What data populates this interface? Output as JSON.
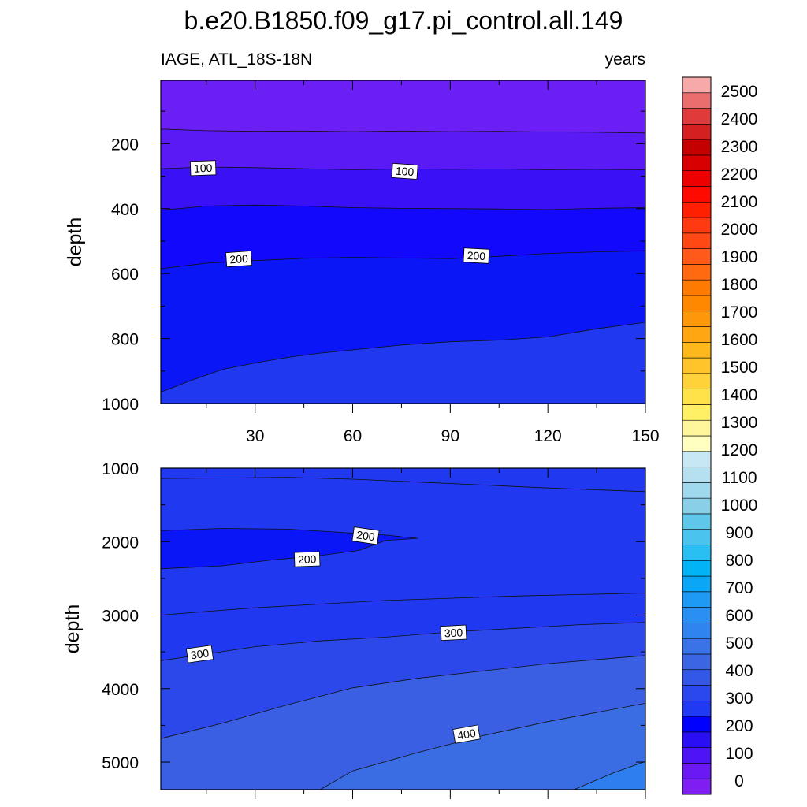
{
  "chart_data": [
    {
      "type": "contour",
      "title": "b.e20.B1850.f09_g17.pi_control.all.149",
      "left_label": "IAGE, ATL_18S-18N",
      "right_label": "years",
      "xlabel": "",
      "ylabel": "depth",
      "xlim": [
        1,
        150
      ],
      "ylim": [
        1000,
        5
      ],
      "x_ticks": [
        30,
        60,
        90,
        120,
        150
      ],
      "y_ticks": [
        200,
        400,
        600,
        800,
        1000
      ],
      "contour_interval": 50,
      "contour_boundaries": [
        {
          "level": 50,
          "points": [
            [
              1,
              155
            ],
            [
              15,
              160
            ],
            [
              30,
              162
            ],
            [
              45,
              161
            ],
            [
              60,
              163
            ],
            [
              75,
              161
            ],
            [
              90,
              163
            ],
            [
              105,
              162
            ],
            [
              120,
              164
            ],
            [
              135,
              165
            ],
            [
              150,
              167
            ]
          ]
        },
        {
          "level": 100,
          "points": [
            [
              1,
              277
            ],
            [
              15,
              272
            ],
            [
              30,
              274
            ],
            [
              45,
              277
            ],
            [
              60,
              280
            ],
            [
              75,
              278
            ],
            [
              90,
              279
            ],
            [
              105,
              278
            ],
            [
              120,
              280
            ],
            [
              135,
              279
            ],
            [
              150,
              280
            ]
          ]
        },
        {
          "level": 150,
          "points": [
            [
              1,
              405
            ],
            [
              15,
              392
            ],
            [
              30,
              389
            ],
            [
              45,
              392
            ],
            [
              60,
              397
            ],
            [
              75,
              399
            ],
            [
              90,
              400
            ],
            [
              105,
              401
            ],
            [
              120,
              403
            ],
            [
              135,
              399
            ],
            [
              150,
              397
            ]
          ]
        },
        {
          "level": 200,
          "points": [
            [
              1,
              585
            ],
            [
              15,
              568
            ],
            [
              30,
              560
            ],
            [
              45,
              553
            ],
            [
              60,
              550
            ],
            [
              75,
              552
            ],
            [
              90,
              554
            ],
            [
              105,
              547
            ],
            [
              120,
              538
            ],
            [
              135,
              533
            ],
            [
              150,
              530
            ]
          ]
        },
        {
          "level": 250,
          "points": [
            [
              1,
              965
            ],
            [
              10,
              930
            ],
            [
              20,
              895
            ],
            [
              30,
              875
            ],
            [
              40,
              858
            ],
            [
              50,
              845
            ],
            [
              60,
              835
            ],
            [
              75,
              820
            ],
            [
              90,
              810
            ],
            [
              105,
              805
            ],
            [
              120,
              795
            ],
            [
              135,
              770
            ],
            [
              150,
              750
            ]
          ]
        }
      ],
      "contour_labels": [
        {
          "text": "100",
          "x": 14,
          "y": 275,
          "angle": -2
        },
        {
          "text": "100",
          "x": 76,
          "y": 285,
          "angle": 4
        },
        {
          "text": "200",
          "x": 25,
          "y": 555,
          "angle": -4
        },
        {
          "text": "200",
          "x": 98,
          "y": 545,
          "angle": 3
        }
      ]
    },
    {
      "type": "contour",
      "xlabel": "",
      "ylabel": "depth",
      "xlim": [
        1,
        150
      ],
      "ylim": [
        5375,
        1000
      ],
      "y_ticks": [
        1000,
        2000,
        3000,
        4000,
        5000
      ],
      "contour_interval": 50,
      "contour_boundaries": [
        {
          "level": 250,
          "points": [
            [
              1,
              1140
            ],
            [
              20,
              1135
            ],
            [
              40,
              1125
            ],
            [
              60,
              1150
            ],
            [
              80,
              1190
            ],
            [
              100,
              1230
            ],
            [
              120,
              1270
            ],
            [
              150,
              1320
            ]
          ]
        },
        {
          "level": 200,
          "closed": true,
          "points": [
            [
              1,
              1850
            ],
            [
              20,
              1820
            ],
            [
              40,
              1830
            ],
            [
              55,
              1870
            ],
            [
              70,
              1910
            ],
            [
              80,
              1955
            ],
            [
              70,
              1985
            ],
            [
              62,
              2120
            ],
            [
              50,
              2190
            ],
            [
              35,
              2250
            ],
            [
              20,
              2330
            ],
            [
              1,
              2370
            ]
          ]
        },
        {
          "level": 250,
          "points": [
            [
              1,
              3000
            ],
            [
              15,
              2950
            ],
            [
              30,
              2900
            ],
            [
              50,
              2850
            ],
            [
              70,
              2800
            ],
            [
              90,
              2770
            ],
            [
              110,
              2740
            ],
            [
              130,
              2720
            ],
            [
              150,
              2700
            ]
          ]
        },
        {
          "level": 300,
          "points": [
            [
              1,
              3620
            ],
            [
              15,
              3530
            ],
            [
              30,
              3430
            ],
            [
              50,
              3350
            ],
            [
              70,
              3300
            ],
            [
              90,
              3230
            ],
            [
              110,
              3180
            ],
            [
              130,
              3130
            ],
            [
              150,
              3100
            ]
          ]
        },
        {
          "level": 350,
          "points": [
            [
              1,
              4680
            ],
            [
              20,
              4470
            ],
            [
              40,
              4220
            ],
            [
              60,
              3990
            ],
            [
              80,
              3860
            ],
            [
              100,
              3760
            ],
            [
              120,
              3660
            ],
            [
              150,
              3550
            ]
          ]
        },
        {
          "level": 400,
          "points": [
            [
              50,
              5375
            ],
            [
              60,
              5120
            ],
            [
              80,
              4870
            ],
            [
              100,
              4640
            ],
            [
              120,
              4450
            ],
            [
              150,
              4200
            ]
          ]
        },
        {
          "level": 450,
          "points": [
            [
              128,
              5375
            ],
            [
              140,
              5150
            ],
            [
              150,
              4990
            ]
          ]
        }
      ],
      "contour_labels": [
        {
          "text": "200",
          "x": 64,
          "y": 1920,
          "angle": 8
        },
        {
          "text": "200",
          "x": 46,
          "y": 2240,
          "angle": -2
        },
        {
          "text": "300",
          "x": 13,
          "y": 3530,
          "angle": -8
        },
        {
          "text": "300",
          "x": 91,
          "y": 3240,
          "angle": -3
        },
        {
          "text": "400",
          "x": 95,
          "y": 4620,
          "angle": -10
        }
      ]
    }
  ],
  "colorbar": {
    "labels": [
      "0",
      "100",
      "200",
      "300",
      "400",
      "500",
      "600",
      "700",
      "800",
      "900",
      "1000",
      "1100",
      "1200",
      "1300",
      "1400",
      "1500",
      "1600",
      "1700",
      "1800",
      "1900",
      "2000",
      "2100",
      "2200",
      "2300",
      "2400",
      "2500"
    ],
    "fill_colors": [
      "#7e1ef2",
      "#6a19f4",
      "#4e14f5",
      "#2a0ff5",
      "#0000ff",
      "#1f3af2",
      "#2b47ee",
      "#3358e8",
      "#3b66e3",
      "#3a72e8",
      "#2f84ef",
      "#2a8ff3",
      "#1e9af5",
      "#0ca6f7",
      "#00b4f6",
      "#2abff2",
      "#4ac4ee",
      "#5fc8ea",
      "#8acfe8",
      "#a0d8ee",
      "#b6dff0",
      "#c8e7f5",
      "#ffffc0",
      "#fff59a",
      "#fff066",
      "#ffe14a",
      "#ffd23a",
      "#ffc42a",
      "#ffb81c",
      "#ffa612",
      "#ff970a",
      "#ff8800",
      "#ff7a00",
      "#ff6a10",
      "#ff5a1a",
      "#ff4814",
      "#ff3a10",
      "#ff2000",
      "#ff0a00",
      "#ee0000",
      "#d80000",
      "#c40000",
      "#d42020",
      "#e03a3a",
      "#ea6e6e",
      "#f7a8a8"
    ]
  }
}
